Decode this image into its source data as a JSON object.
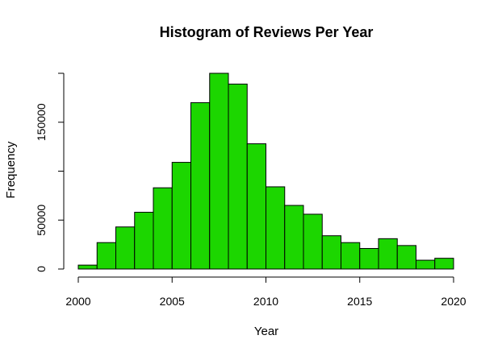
{
  "chart_data": {
    "type": "bar",
    "title": "Histogram of Reviews Per Year",
    "xlabel": "Year",
    "ylabel": "Frequency",
    "bin_width": 1,
    "bins": [
      {
        "start": 2000,
        "end": 2001,
        "value": 4000
      },
      {
        "start": 2001,
        "end": 2002,
        "value": 27000
      },
      {
        "start": 2002,
        "end": 2003,
        "value": 43000
      },
      {
        "start": 2003,
        "end": 2004,
        "value": 58000
      },
      {
        "start": 2004,
        "end": 2005,
        "value": 83000
      },
      {
        "start": 2005,
        "end": 2006,
        "value": 109000
      },
      {
        "start": 2006,
        "end": 2007,
        "value": 170000
      },
      {
        "start": 2007,
        "end": 2008,
        "value": 200000
      },
      {
        "start": 2008,
        "end": 2009,
        "value": 189000
      },
      {
        "start": 2009,
        "end": 2010,
        "value": 128000
      },
      {
        "start": 2010,
        "end": 2011,
        "value": 84000
      },
      {
        "start": 2011,
        "end": 2012,
        "value": 65000
      },
      {
        "start": 2012,
        "end": 2013,
        "value": 56000
      },
      {
        "start": 2013,
        "end": 2014,
        "value": 34000
      },
      {
        "start": 2014,
        "end": 2015,
        "value": 27000
      },
      {
        "start": 2015,
        "end": 2016,
        "value": 21000
      },
      {
        "start": 2016,
        "end": 2017,
        "value": 31000
      },
      {
        "start": 2017,
        "end": 2018,
        "value": 24000
      },
      {
        "start": 2018,
        "end": 2019,
        "value": 9000
      },
      {
        "start": 2019,
        "end": 2020,
        "value": 11000
      }
    ],
    "xlim": [
      2000,
      2020
    ],
    "ylim": [
      0,
      200000
    ],
    "x_ticks": [
      2000,
      2005,
      2010,
      2015,
      2020
    ],
    "y_ticks": [
      0,
      50000,
      100000,
      150000,
      200000
    ],
    "y_tick_labels": [
      "0",
      "50000",
      "",
      "150000",
      ""
    ],
    "bar_color": "#1cd600",
    "grid": false,
    "legend": "none"
  }
}
